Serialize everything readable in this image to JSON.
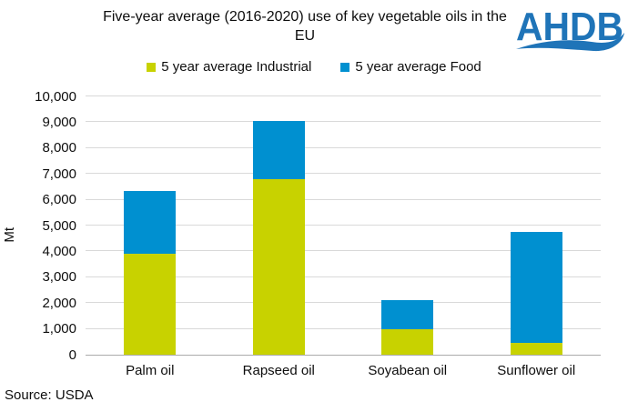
{
  "title": "Five-year average (2016-2020) use of key vegetable oils in the EU",
  "logo": {
    "text": "AHDB",
    "color": "#1f74b8"
  },
  "legend": {
    "items": [
      {
        "label": "5 year average Industrial",
        "color": "#c8d200"
      },
      {
        "label": "5 year average Food",
        "color": "#0090d0"
      }
    ]
  },
  "source": "Source: USDA",
  "chart_data": {
    "type": "bar",
    "stacked": true,
    "title": "Five-year average (2016-2020) use of key vegetable oils in the EU",
    "categories": [
      "Palm oil",
      "Rapseed oil",
      "Soyabean oil",
      "Sunflower oil"
    ],
    "series": [
      {
        "name": "5 year average Industrial",
        "color": "#c8d200",
        "values": [
          3900,
          6800,
          1000,
          450
        ]
      },
      {
        "name": "5 year average Food",
        "color": "#0090d0",
        "values": [
          2450,
          2250,
          1100,
          4300
        ]
      }
    ],
    "ylabel": "Mt",
    "ylim": [
      0,
      10000
    ],
    "ytick_step": 1000,
    "yticks": [
      "0",
      "1,000",
      "2,000",
      "3,000",
      "4,000",
      "5,000",
      "6,000",
      "7,000",
      "8,000",
      "9,000",
      "10,000"
    ],
    "grid": "horizontal",
    "legend_position": "top"
  }
}
